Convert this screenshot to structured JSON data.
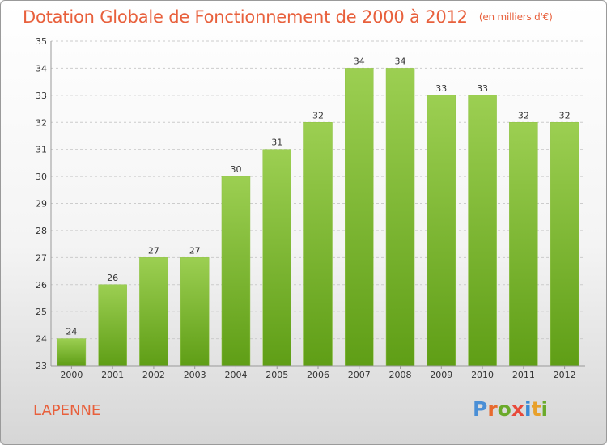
{
  "title": "Dotation Globale de Fonctionnement de 2000 à 2012",
  "unit_note": "(en milliers d'€)",
  "commune": "LAPENNE",
  "brand": {
    "letters": [
      "P",
      "r",
      "o",
      "x",
      "i",
      "t",
      "i"
    ],
    "colors": [
      "#4a8fd6",
      "#e86a2e",
      "#6aaa2a",
      "#e84a3a",
      "#3a8ad6",
      "#e8a02a",
      "#6aaa2a"
    ]
  },
  "colors": {
    "title": "#e8603c",
    "bar_top": "#9ccf52",
    "bar_bottom": "#5f9e16",
    "grid": "#cccccc",
    "axis_text": "#333333"
  },
  "chart_data": {
    "type": "bar",
    "categories": [
      "2000",
      "2001",
      "2002",
      "2003",
      "2004",
      "2005",
      "2006",
      "2007",
      "2008",
      "2009",
      "2010",
      "2011",
      "2012"
    ],
    "values": [
      24,
      26,
      27,
      27,
      30,
      31,
      32,
      34,
      34,
      33,
      33,
      32,
      32
    ],
    "ylim": [
      23,
      35
    ],
    "yticks": [
      23,
      24,
      25,
      26,
      27,
      28,
      29,
      30,
      31,
      32,
      33,
      34,
      35
    ],
    "grid": "horizontal dashed",
    "data_labels": true
  }
}
